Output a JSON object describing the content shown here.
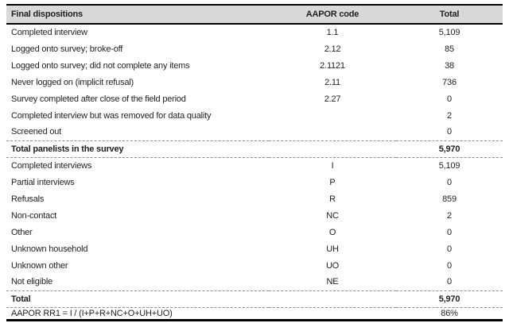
{
  "table": {
    "headers": {
      "dispositions": "Final dispositions",
      "code": "AAPOR code",
      "total": "Total"
    },
    "rows": [
      {
        "label": "Completed interview",
        "code": "1.1",
        "total": "5,109"
      },
      {
        "label": "Logged onto survey; broke-off",
        "code": "2.12",
        "total": "85"
      },
      {
        "label": "Logged onto survey; did not complete any items",
        "code": "2.1121",
        "total": "38"
      },
      {
        "label": "Never logged on (implicit refusal)",
        "code": "2.11",
        "total": "736"
      },
      {
        "label": "Survey completed after close of the field period",
        "code": "2.27",
        "total": "0"
      },
      {
        "label": "Completed interview but was removed for data quality",
        "code": "",
        "total": "2"
      },
      {
        "label": "Screened out",
        "code": "",
        "total": "0"
      },
      {
        "label": "Total panelists in the survey",
        "code": "",
        "total": "5,970"
      },
      {
        "label": "Completed interviews",
        "code": "I",
        "total": "5,109"
      },
      {
        "label": "Partial interviews",
        "code": "P",
        "total": "0"
      },
      {
        "label": "Refusals",
        "code": "R",
        "total": "859"
      },
      {
        "label": "Non-contact",
        "code": "NC",
        "total": "2"
      },
      {
        "label": "Other",
        "code": "O",
        "total": "0"
      },
      {
        "label": "Unknown household",
        "code": "UH",
        "total": "0"
      },
      {
        "label": "Unknown other",
        "code": "UO",
        "total": "0"
      },
      {
        "label": "Not eligible",
        "code": "NE",
        "total": "0"
      },
      {
        "label": "Total",
        "code": "",
        "total": "5,970"
      },
      {
        "label": "AAPOR RR1 = I / (I+P+R+NC+O+UH+UO)",
        "code": "",
        "total": "86%"
      }
    ],
    "colors": {
      "header_background": "#d9d9d9",
      "rule": "#000000",
      "separator": "#8c8c8c",
      "text": "#1f1f1f"
    }
  }
}
